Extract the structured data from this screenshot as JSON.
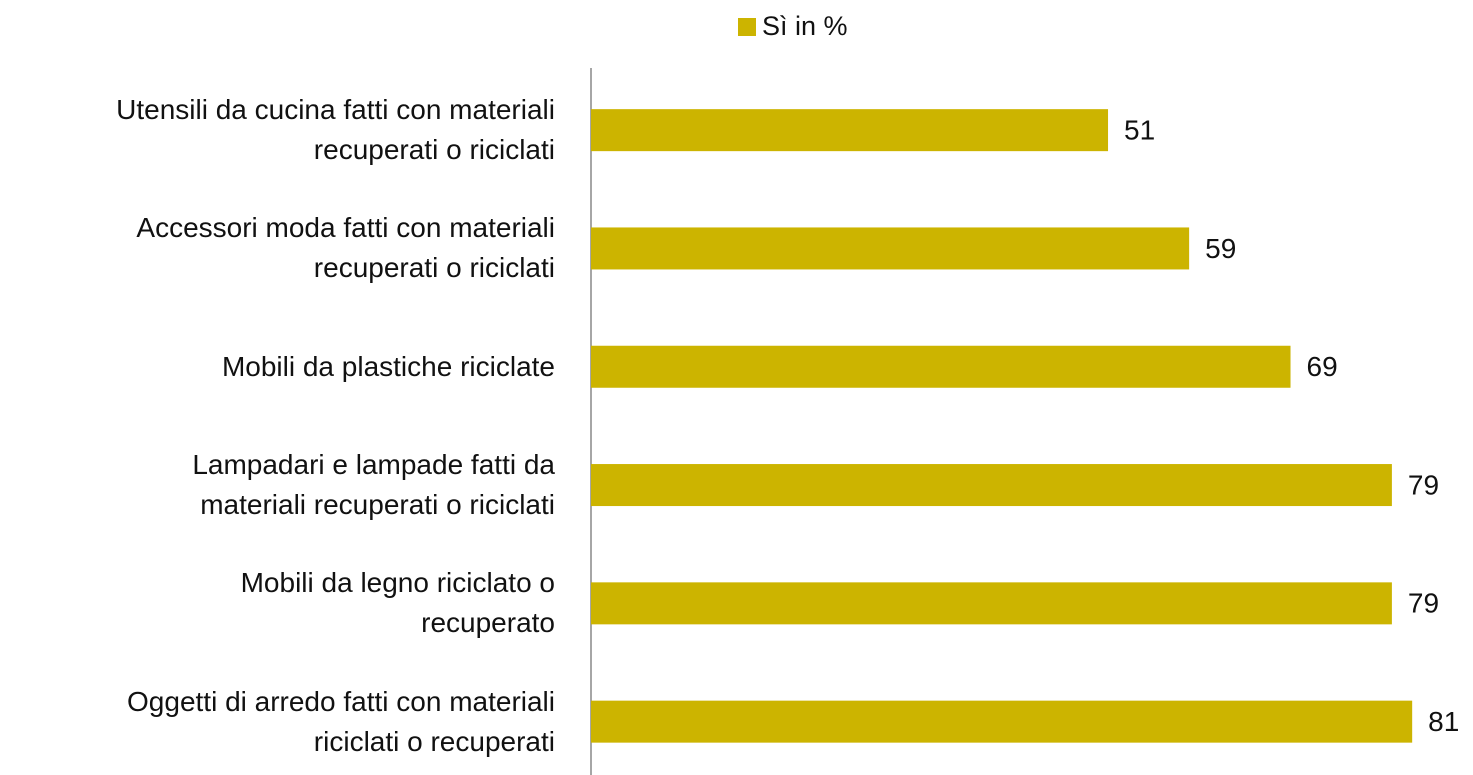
{
  "chart_data": {
    "type": "bar",
    "orientation": "horizontal",
    "categories": [
      "Utensili da cucina fatti con materiali\nrecuperati o riciclati",
      "Accessori moda fatti con materiali\nrecuperati o riciclati",
      "Mobili da plastiche riciclate",
      "Lampadari e lampade fatti da\nmateriali recuperati o riciclati",
      "Mobili da legno riciclato o\nrecuperato",
      "Oggetti di arredo fatti con materiali\nriciclati o recuperati"
    ],
    "series": [
      {
        "name": "Sì in %",
        "color": "#ccb400",
        "values": [
          51,
          59,
          69,
          79,
          79,
          81
        ]
      }
    ],
    "xlim": [
      0,
      87
    ],
    "legend": "top"
  }
}
